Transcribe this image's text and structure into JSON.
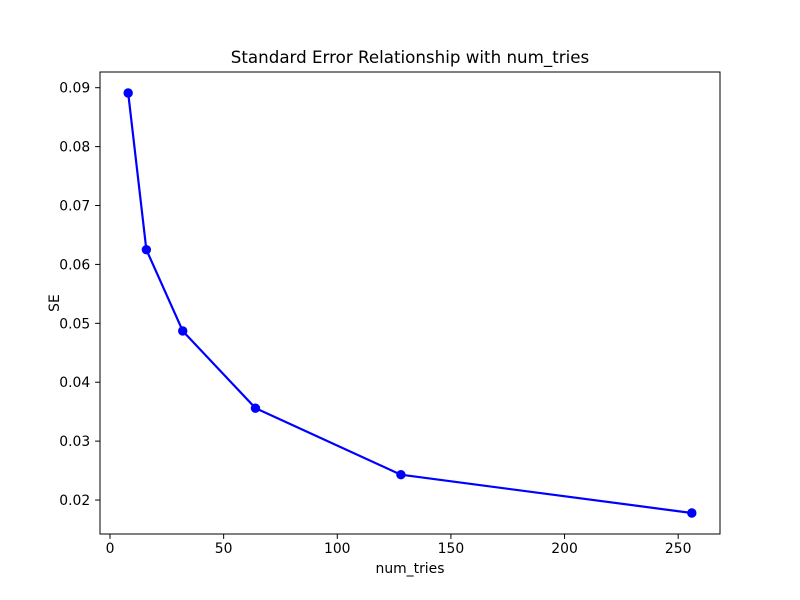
{
  "chart_data": {
    "type": "line",
    "title": "Standard Error Relationship with num_tries",
    "xlabel": "num_tries",
    "ylabel": "SE",
    "x": [
      8,
      16,
      32,
      64,
      128,
      256
    ],
    "y": [
      0.0891,
      0.0625,
      0.0487,
      0.0356,
      0.0243,
      0.0178
    ],
    "series_name": "SE",
    "line_color": "#0000ff",
    "marker": "circle",
    "marker_color": "#0000ff",
    "xticks": [
      0,
      50,
      100,
      150,
      200,
      250
    ],
    "xtick_labels": [
      "0",
      "50",
      "100",
      "150",
      "200",
      "250"
    ],
    "yticks": [
      0.02,
      0.03,
      0.04,
      0.05,
      0.06,
      0.07,
      0.08,
      0.09
    ],
    "ytick_labels": [
      "0.02",
      "0.03",
      "0.04",
      "0.05",
      "0.06",
      "0.07",
      "0.08",
      "0.09"
    ],
    "xlim": [
      -4.4,
      268.4
    ],
    "ylim": [
      0.014235,
      0.092665
    ],
    "grid": false,
    "legend": null,
    "background_color": "#ffffff",
    "spine_color": "#000000",
    "text_color": "#000000"
  }
}
